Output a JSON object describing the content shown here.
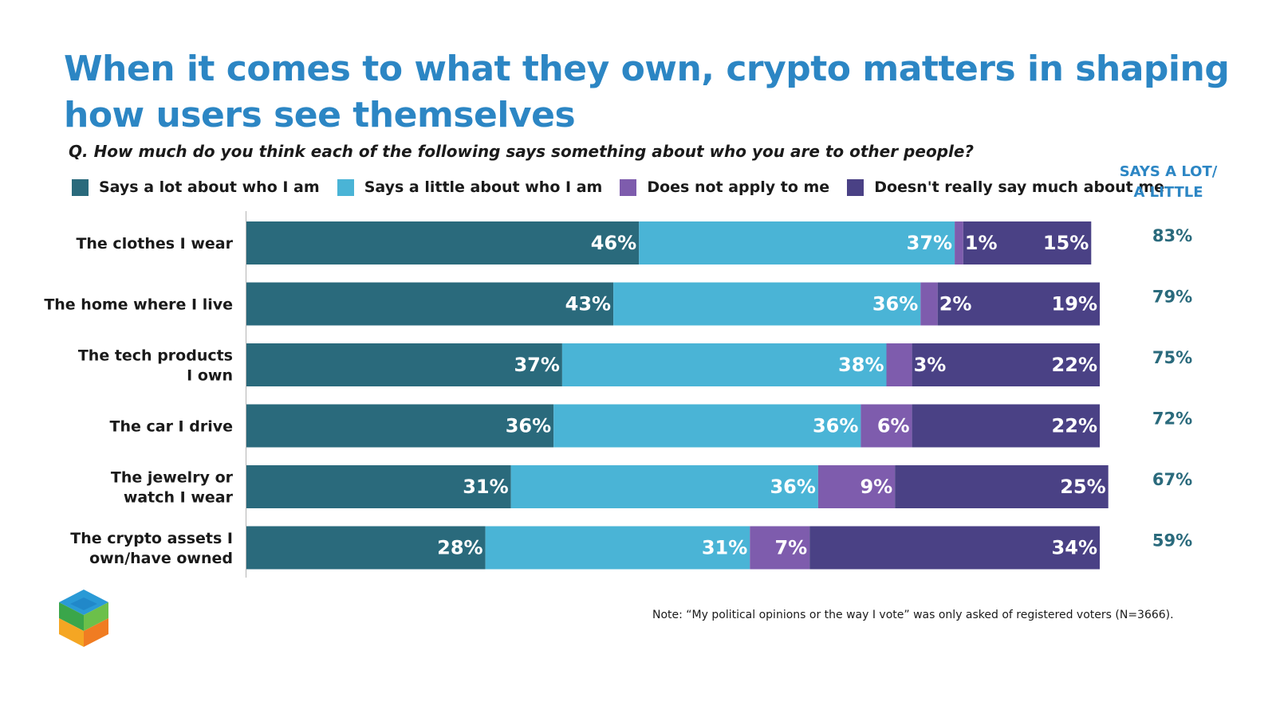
{
  "title_lines": [
    "When it comes to what they own, crypto matters in shaping",
    "how users see themselves"
  ],
  "question": "Q. How much do you think each of the following says something about who you are to other people?",
  "side_header_lines": [
    "SAYS A LOT/",
    "A LITTLE"
  ],
  "note": "Note: “My political opinions or the way I vote” was only asked of registered voters (N=3666).",
  "colors": {
    "title": "#2c86c4",
    "series": [
      "#2a6a7c",
      "#4ab4d6",
      "#7e5cad",
      "#4a4185"
    ],
    "summary": "#2a6a7c"
  },
  "chart_data": {
    "type": "bar",
    "orientation": "horizontal",
    "stacked": true,
    "title": "When it comes to what they own, crypto matters in shaping how users see themselves",
    "xlim": [
      0,
      100
    ],
    "categories": [
      [
        "The clothes I wear"
      ],
      [
        "The home where I live"
      ],
      [
        "The tech products",
        "I own"
      ],
      [
        "The car I drive"
      ],
      [
        "The jewelry or",
        "watch I wear"
      ],
      [
        "The crypto assets I",
        "own/have owned"
      ]
    ],
    "series": [
      {
        "name": "Says a lot about who I am",
        "values": [
          46,
          43,
          37,
          36,
          31,
          28
        ]
      },
      {
        "name": "Says a little about who I am",
        "values": [
          37,
          36,
          38,
          36,
          36,
          31
        ]
      },
      {
        "name": "Does not apply to me",
        "values": [
          1,
          2,
          3,
          6,
          9,
          7
        ]
      },
      {
        "name": "Doesn't really say much about me",
        "values": [
          15,
          19,
          22,
          22,
          25,
          34
        ]
      }
    ],
    "summary_label": "SAYS A LOT/ A LITTLE",
    "summary_values": [
      "83%",
      "79%",
      "75%",
      "72%",
      "67%",
      "59%"
    ]
  }
}
